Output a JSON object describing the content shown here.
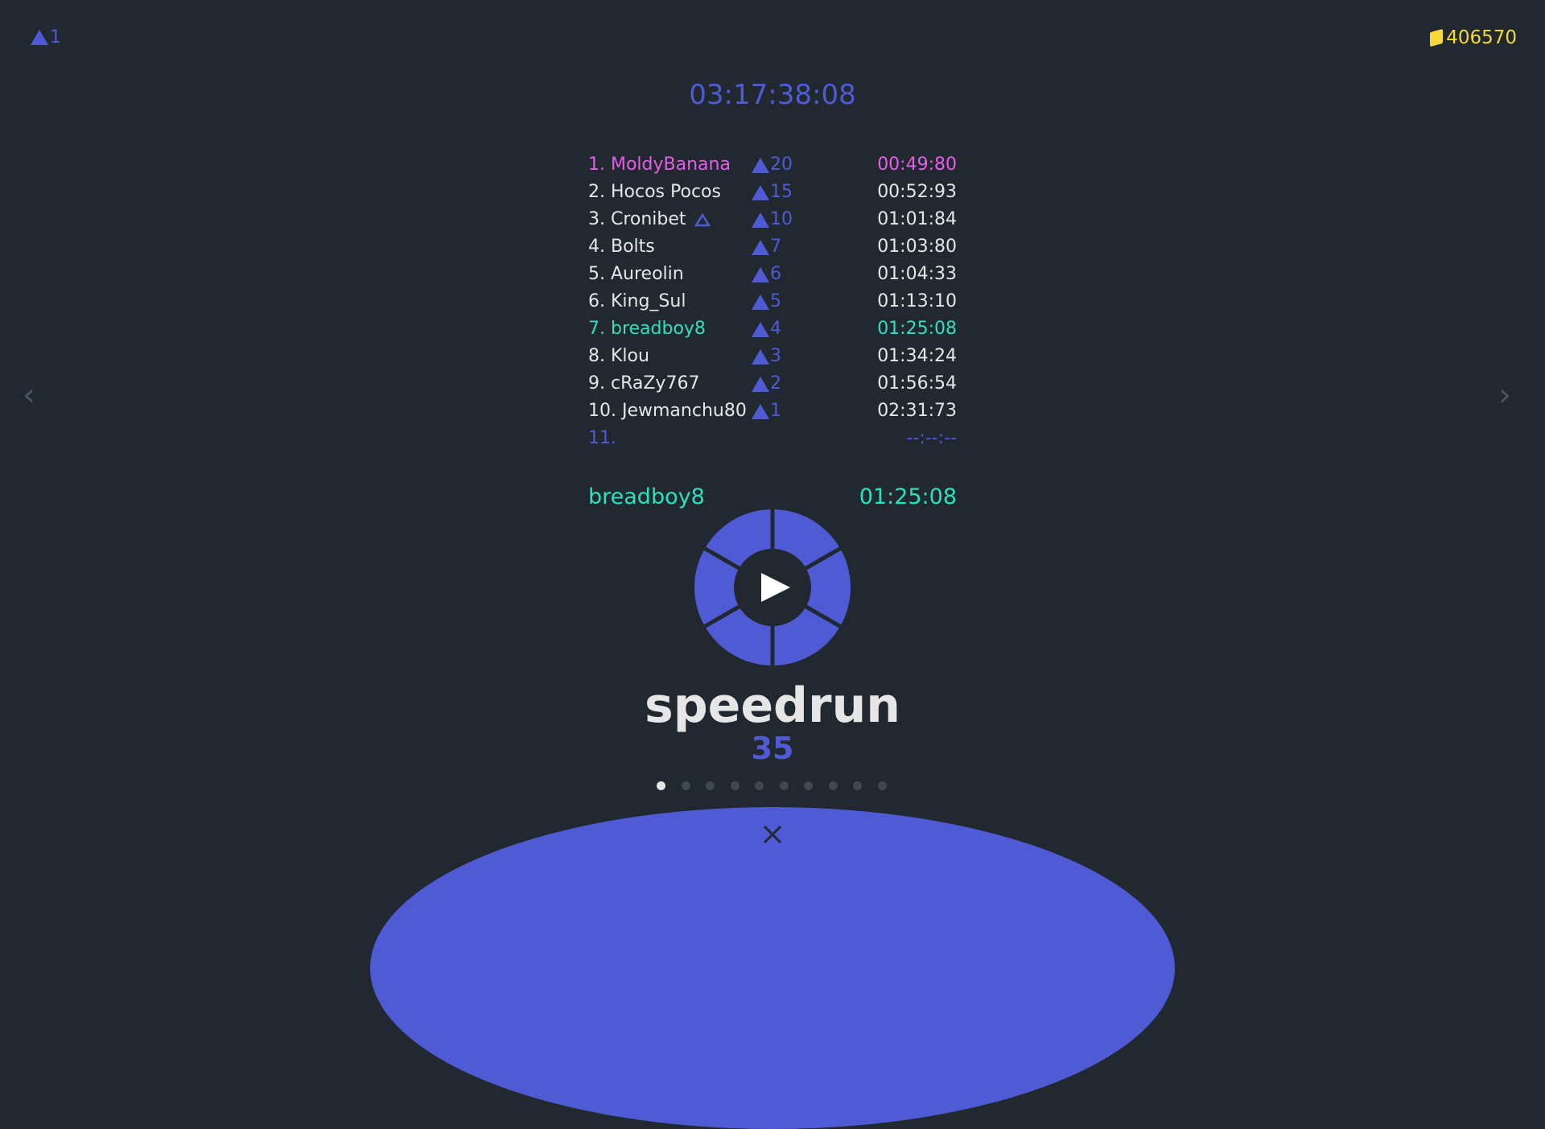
{
  "header": {
    "lives": "1",
    "coins": "406570",
    "timer": "03:17:38:08"
  },
  "colors": {
    "background": "#212830",
    "accent": "#4f5bd5",
    "first_place": "#e55ee8",
    "player": "#2de0c0",
    "coin": "#f5d83a"
  },
  "leaderboard": [
    {
      "rank_name": "1. MoldyBanana",
      "score": "20",
      "time": "00:49:80",
      "highlight": "first"
    },
    {
      "rank_name": "2. Hocos Pocos",
      "score": "15",
      "time": "00:52:93"
    },
    {
      "rank_name": "3. Cronibet",
      "score": "10",
      "time": "01:01:84",
      "badge": "outline-triangle-icon"
    },
    {
      "rank_name": "4. Bolts",
      "score": "7",
      "time": "01:03:80"
    },
    {
      "rank_name": "5. Aureolin",
      "score": "6",
      "time": "01:04:33"
    },
    {
      "rank_name": "6. King_Sul",
      "score": "5",
      "time": "01:13:10"
    },
    {
      "rank_name": "7. breadboy8",
      "score": "4",
      "time": "01:25:08",
      "highlight": "player"
    },
    {
      "rank_name": "8. Klou",
      "score": "3",
      "time": "01:34:24"
    },
    {
      "rank_name": "9. cRaZy767",
      "score": "2",
      "time": "01:56:54"
    },
    {
      "rank_name": "10. Jewmanchu80",
      "score": "1",
      "time": "02:31:73"
    },
    {
      "rank_name": "11.",
      "score": null,
      "time": "--:--:--",
      "highlight": "empty"
    }
  ],
  "player": {
    "name": "breadboy8",
    "time": "01:25:08"
  },
  "level": {
    "title": "speedrun",
    "number": "35",
    "page_count": 10,
    "current_page": 1
  },
  "icons": {
    "play": "play-icon",
    "close": "close-icon",
    "prev": "chevron-left-icon",
    "next": "chevron-right-icon",
    "lives": "triangle-icon",
    "coins": "coin-icon"
  }
}
